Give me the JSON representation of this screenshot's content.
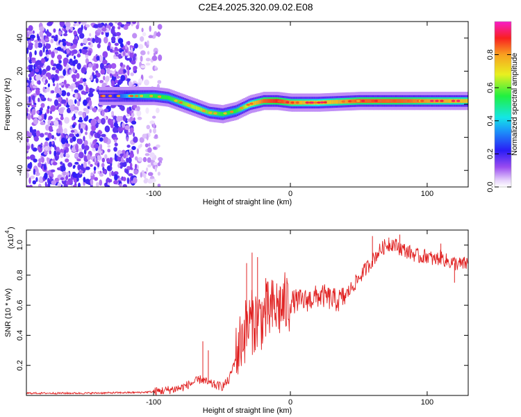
{
  "title": "C2E4.2025.320.09.02.E08",
  "chart_data": [
    {
      "type": "heatmap",
      "title": "C2E4.2025.320.09.02.E08",
      "xlabel": "Height of straight line (km)",
      "ylabel": "Frequency (Hz)",
      "xlim": [
        -193,
        130
      ],
      "ylim": [
        -50,
        50
      ],
      "xticks": [
        -100,
        0,
        100
      ],
      "xticklabels": [
        "-100",
        "0",
        "100"
      ],
      "yticks": [
        -40,
        -20,
        0,
        20,
        40
      ],
      "yticklabels": [
        "-40",
        "-20",
        "0",
        "20",
        "40"
      ],
      "colorbar": {
        "label": "Normalized spectral amplitude",
        "range": [
          0.0,
          1.0
        ],
        "ticks": [
          0.0,
          0.2,
          0.4,
          0.6,
          0.8
        ],
        "ticklabels": [
          "0.0",
          "0.2",
          "0.4",
          "0.6",
          "0.8"
        ],
        "colormap": "rainbow (white-purple-blue-cyan-green-yellow-red-magenta)"
      },
      "ridge": {
        "x": [
          -130,
          -115,
          -100,
          -90,
          -80,
          -70,
          -60,
          -50,
          -40,
          -30,
          -20,
          -10,
          0,
          20,
          50,
          80,
          100,
          130
        ],
        "frequency": [
          5,
          5,
          5,
          4,
          1,
          -2,
          -5,
          -6,
          -4,
          0,
          2,
          2,
          1,
          1,
          2,
          2,
          2,
          2
        ],
        "amplitude": [
          0.2,
          0.45,
          0.55,
          0.55,
          0.6,
          0.65,
          0.6,
          0.55,
          0.55,
          0.7,
          0.85,
          0.9,
          0.8,
          0.7,
          0.85,
          0.85,
          0.8,
          0.75
        ]
      },
      "noise_region": {
        "x_range": [
          -193,
          -95
        ],
        "freq_range": [
          -50,
          50
        ],
        "amplitude": 0.2
      }
    },
    {
      "type": "line",
      "xlabel": "Height of straight line (km)",
      "ylabel": "SNR (10 * v/v)",
      "yscale_label": "(x10^4)",
      "yscale_base": "(x10",
      "yscale_exp": "4",
      "yscale_close": ")",
      "xlim": [
        -193,
        130
      ],
      "ylim": [
        0,
        1.1
      ],
      "xticks": [
        -100,
        0,
        100
      ],
      "xticklabels": [
        "-100",
        "0",
        "100"
      ],
      "yticks": [
        0.2,
        0.4,
        0.6,
        0.8,
        1.0
      ],
      "yticklabels": [
        "0.2",
        "0.4",
        "0.6",
        "0.8",
        "1.0"
      ],
      "color": "#e02020",
      "series": [
        {
          "name": "SNR",
          "x": [
            -193,
            -150,
            -110,
            -100,
            -90,
            -80,
            -75,
            -70,
            -65,
            -60,
            -55,
            -50,
            -45,
            -40,
            -35,
            -30,
            -25,
            -20,
            -15,
            -10,
            -5,
            0,
            5,
            10,
            15,
            20,
            25,
            30,
            35,
            40,
            45,
            50,
            55,
            60,
            65,
            70,
            75,
            80,
            85,
            90,
            95,
            100,
            105,
            110,
            115,
            120,
            125,
            130
          ],
          "y": [
            0.015,
            0.015,
            0.02,
            0.025,
            0.035,
            0.05,
            0.07,
            0.09,
            0.11,
            0.08,
            0.07,
            0.06,
            0.1,
            0.25,
            0.4,
            0.48,
            0.5,
            0.52,
            0.56,
            0.58,
            0.6,
            0.62,
            0.63,
            0.63,
            0.64,
            0.66,
            0.66,
            0.64,
            0.63,
            0.66,
            0.72,
            0.78,
            0.84,
            0.9,
            0.96,
            1.0,
            1.01,
            0.98,
            0.96,
            0.94,
            0.92,
            0.93,
            0.9,
            0.92,
            0.89,
            0.88,
            0.87,
            0.88
          ]
        }
      ],
      "spikes": [
        {
          "x": -64,
          "y": 0.36
        },
        {
          "x": -60,
          "y": 0.3
        },
        {
          "x": -32,
          "y": 0.88
        },
        {
          "x": -28,
          "y": 0.95
        },
        {
          "x": -24,
          "y": 0.92
        },
        {
          "x": -18,
          "y": 0.78
        },
        {
          "x": -12,
          "y": 0.62
        },
        {
          "x": 60,
          "y": 1.06
        },
        {
          "x": 72,
          "y": 1.05
        },
        {
          "x": 80,
          "y": 1.07
        },
        {
          "x": 110,
          "y": 1.01
        },
        {
          "x": 120,
          "y": 0.75
        }
      ]
    }
  ]
}
